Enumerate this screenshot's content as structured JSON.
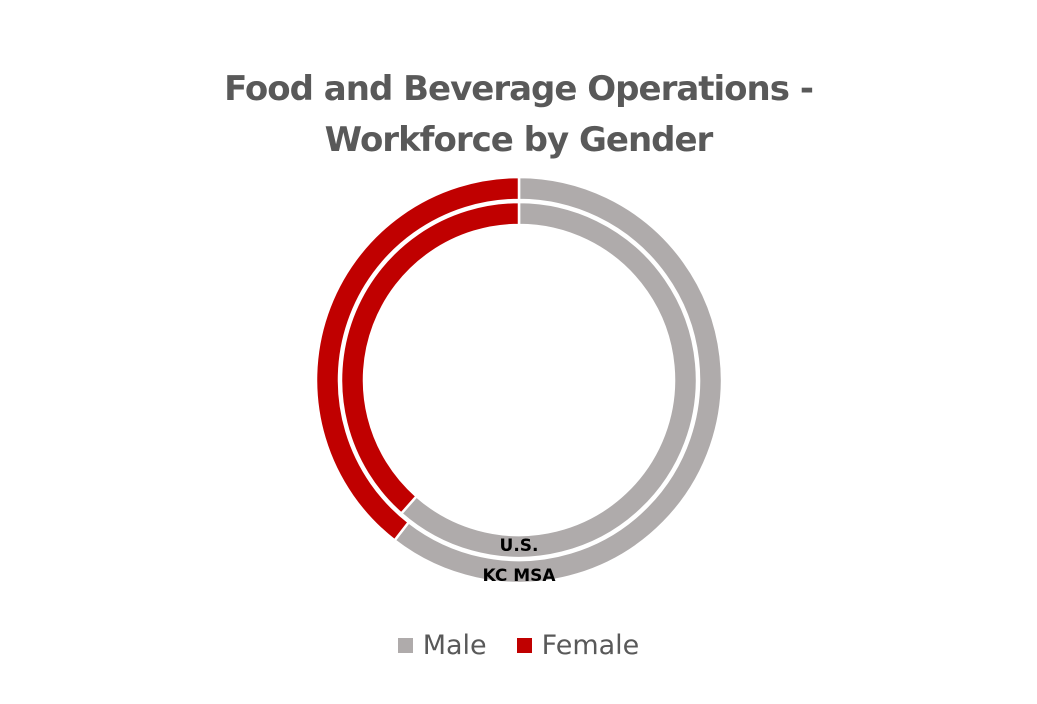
{
  "chart_data": {
    "type": "donut",
    "title_lines": [
      "Food and Beverage Operations -",
      "Workforce by Gender"
    ],
    "categories": [
      "Male",
      "Female"
    ],
    "colors": {
      "Male": "#afabab",
      "Female": "#c00000",
      "separator": "#ffffff"
    },
    "series": [
      {
        "name": "KC MSA",
        "values": [
          60.5,
          39.5
        ]
      },
      {
        "name": "U.S.",
        "values": [
          61.5,
          38.5
        ]
      }
    ],
    "ring_labels": [
      "U.S.",
      "KC MSA"
    ],
    "legend_position": "bottom"
  }
}
